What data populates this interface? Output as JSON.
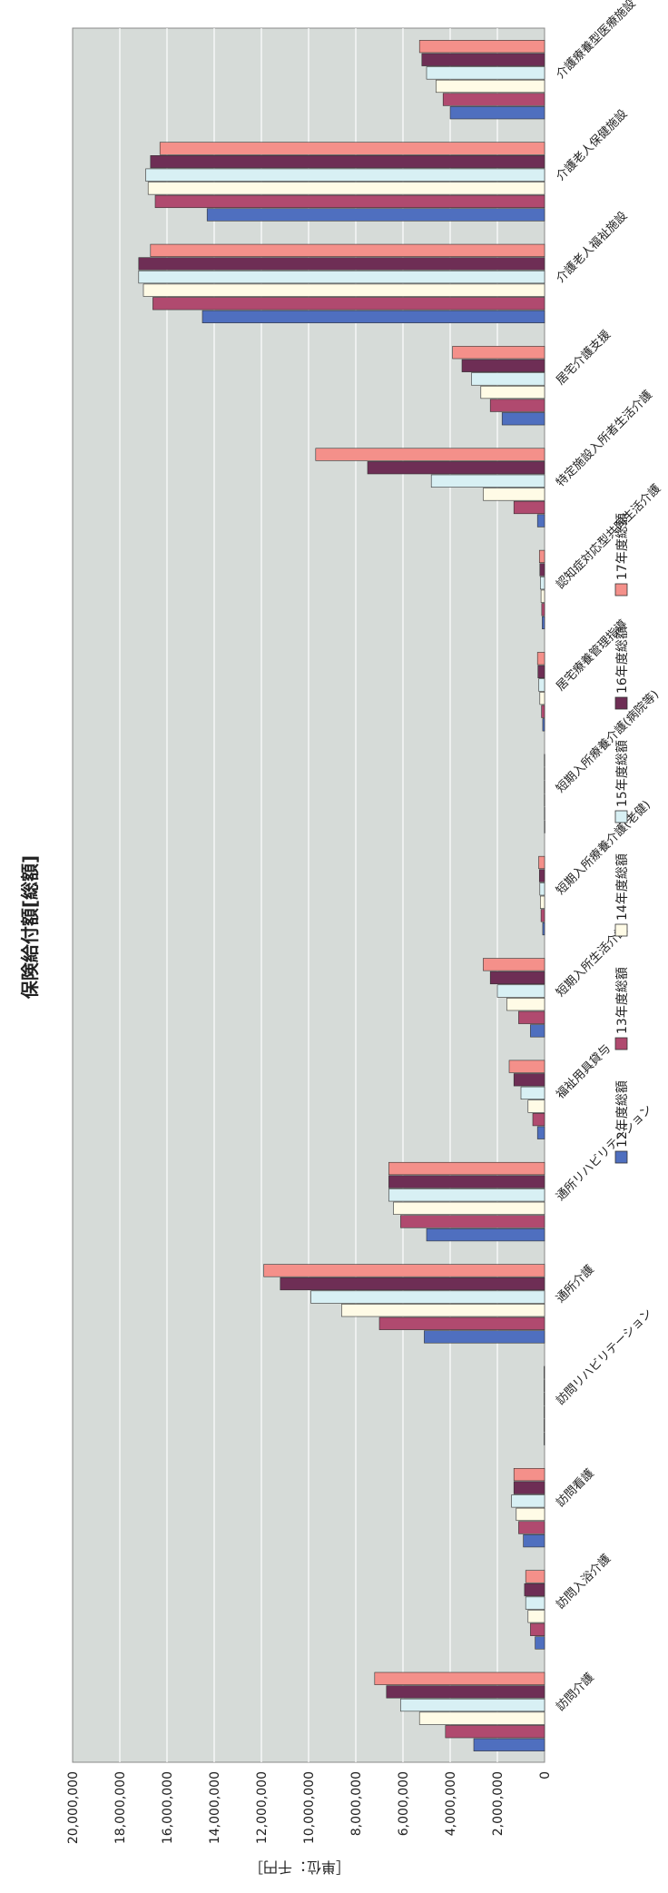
{
  "chart_data": {
    "type": "bar",
    "orientation": "rotated",
    "title": "保険給付額[総額]",
    "ylabel": "［単位：千円］",
    "xlabel": "",
    "ylim": [
      0,
      20000000
    ],
    "yticks": [
      0,
      2000000,
      4000000,
      6000000,
      8000000,
      10000000,
      12000000,
      14000000,
      16000000,
      18000000,
      20000000
    ],
    "ytick_labels": [
      "0",
      "2,000,000",
      "4,000,000",
      "6,000,000",
      "8,000,000",
      "10,000,000",
      "12,000,000",
      "14,000,000",
      "16,000,000",
      "18,000,000",
      "20,000,000"
    ],
    "grid": true,
    "legend_position": "top",
    "categories": [
      "訪問介護",
      "訪問入浴介護",
      "訪問看護",
      "訪問リハビリテーション",
      "通所介護",
      "通所リハビリテーション",
      "福祉用具貸与",
      "短期入所生活介護",
      "短期入所療養介護(老健)",
      "短期入所療養介護(病院等)",
      "居宅療養管理指導",
      "認知症対応型共同生活介護",
      "特定施設入所者生活介護",
      "居宅介護支援",
      "介護老人福祉施設",
      "介護老人保健施設",
      "介護療養型医療施設"
    ],
    "series": [
      {
        "name": "12年度総額",
        "color": "#4f6fbf",
        "values": [
          3000000,
          400000,
          900000,
          20000,
          5100000,
          5000000,
          300000,
          600000,
          80000,
          5000,
          80000,
          100000,
          300000,
          1800000,
          14500000,
          14300000,
          4000000
        ]
      },
      {
        "name": "13年度総額",
        "color": "#b04a6f",
        "values": [
          4200000,
          600000,
          1100000,
          20000,
          7000000,
          6100000,
          500000,
          1100000,
          150000,
          8000,
          130000,
          120000,
          1300000,
          2300000,
          16600000,
          16500000,
          4300000
        ]
      },
      {
        "name": "14年度総額",
        "color": "#fffbe6",
        "values": [
          5300000,
          700000,
          1200000,
          20000,
          8600000,
          6400000,
          700000,
          1600000,
          180000,
          10000,
          200000,
          150000,
          2600000,
          2700000,
          17000000,
          16800000,
          4600000
        ]
      },
      {
        "name": "15年度総額",
        "color": "#d8f0f4",
        "values": [
          6100000,
          800000,
          1400000,
          20000,
          9900000,
          6600000,
          1000000,
          2000000,
          200000,
          10000,
          250000,
          180000,
          4800000,
          3100000,
          17200000,
          16900000,
          5000000
        ]
      },
      {
        "name": "16年度総額",
        "color": "#6e2e55",
        "values": [
          6700000,
          850000,
          1300000,
          20000,
          11200000,
          6600000,
          1300000,
          2300000,
          220000,
          10000,
          280000,
          200000,
          7500000,
          3500000,
          17200000,
          16700000,
          5200000
        ]
      },
      {
        "name": "17年度総額",
        "color": "#f4908a",
        "values": [
          7200000,
          800000,
          1300000,
          20000,
          11900000,
          6600000,
          1500000,
          2600000,
          250000,
          10000,
          300000,
          220000,
          9700000,
          3900000,
          16700000,
          16300000,
          5300000
        ]
      }
    ]
  }
}
